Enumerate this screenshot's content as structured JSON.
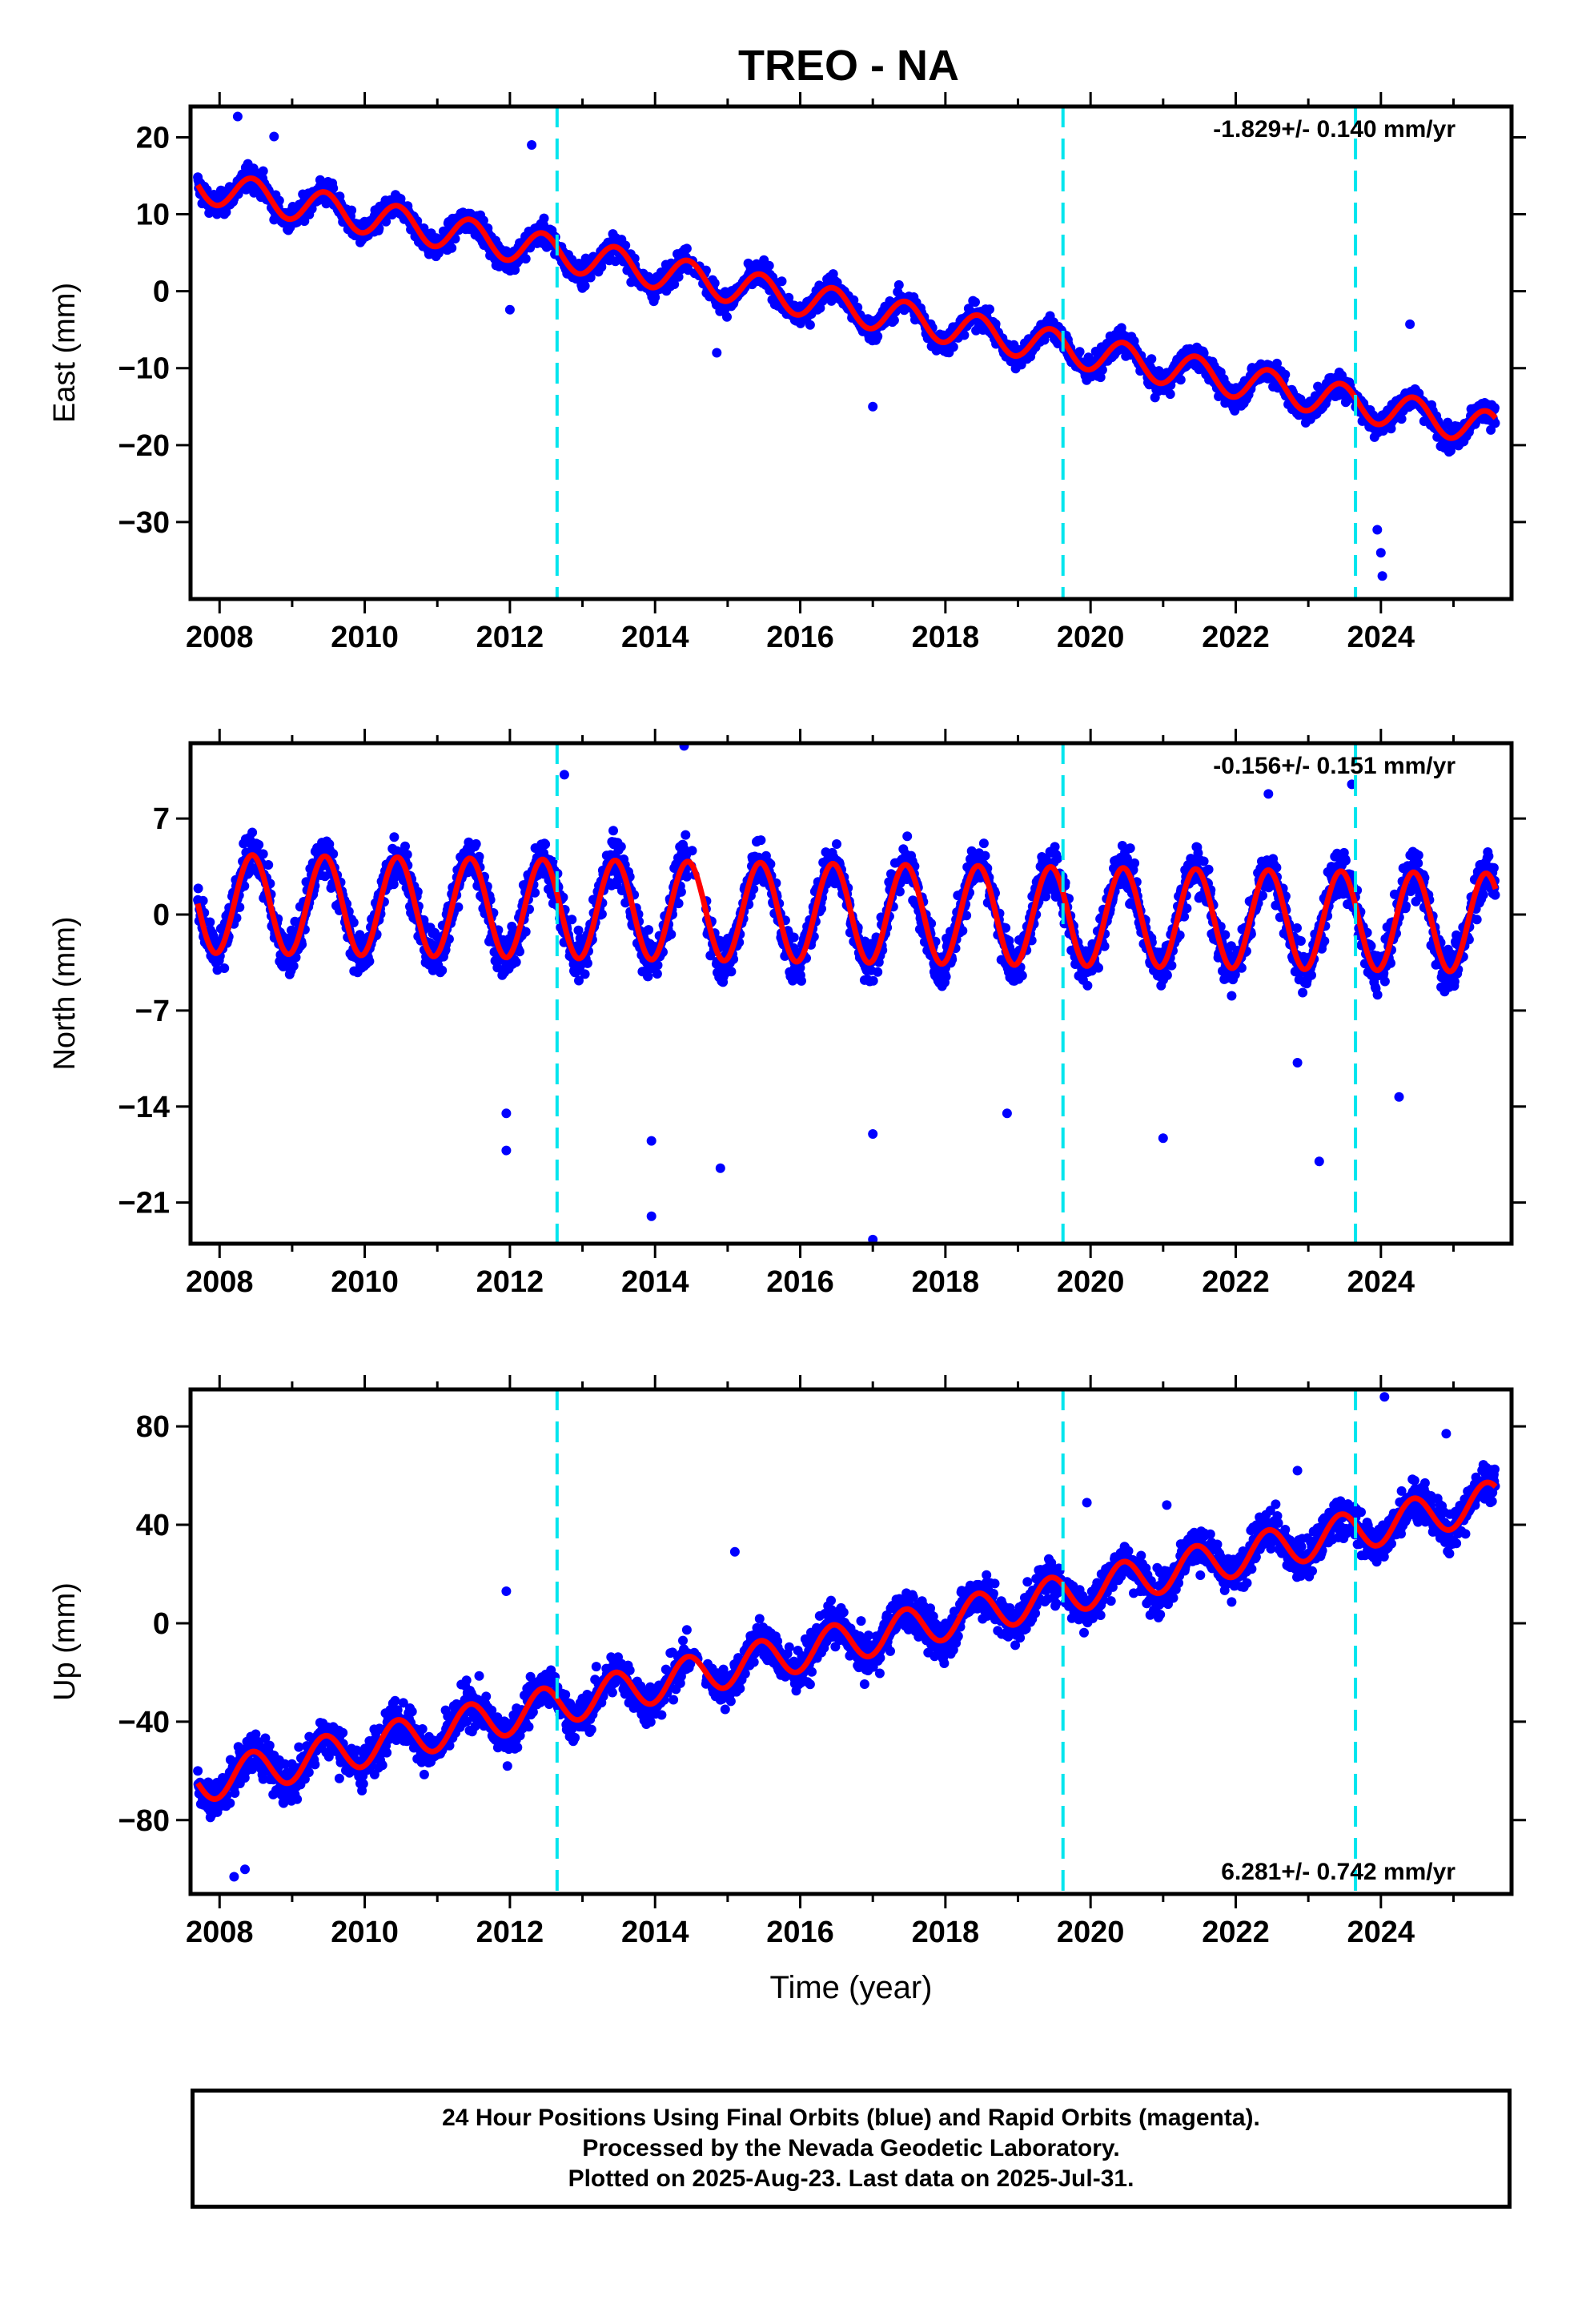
{
  "title": "TREO - NA",
  "colors": {
    "final_orbits": "#0000ff",
    "model": "#ff0000",
    "equipment_change": "#00e5ee",
    "frame": "#000000"
  },
  "chart_data": [
    {
      "type": "scatter",
      "component": "East",
      "ylabel": "East (mm)",
      "xlabel": "",
      "rate_label": "-1.829+/- 0.140 mm/yr",
      "rate_position": "top-right",
      "xlim": [
        2007.6,
        2025.8
      ],
      "ylim": [
        -40,
        24
      ],
      "xticks": [
        2008,
        2010,
        2012,
        2014,
        2016,
        2018,
        2020,
        2022,
        2024
      ],
      "yticks": [
        20,
        10,
        0,
        -10,
        -20,
        -30
      ],
      "ytick_labels": [
        "20",
        "10",
        "0",
        "−10",
        "−20",
        "−30"
      ],
      "grid": false,
      "vertical_lines": [
        2012.65,
        2019.62,
        2023.65
      ],
      "series": [
        {
          "name": "Final Orbits",
          "kind": "points",
          "trend": {
            "x0": 2007.7,
            "x1": 2025.58,
            "y0": 13.8,
            "y1": -18.0
          },
          "annual_amplitude": 2.2,
          "scatter": 1.3
        },
        {
          "name": "Model",
          "kind": "line",
          "trend": {
            "x0": 2007.7,
            "x1": 2025.58,
            "y0": 13.8,
            "y1": -18.0
          },
          "annual_amplitude": 2.2
        }
      ],
      "outliers": [
        [
          2008.25,
          22.7
        ],
        [
          2008.75,
          20.1
        ],
        [
          2012.3,
          19
        ],
        [
          2012.0,
          -2.4
        ],
        [
          2014.85,
          -8
        ],
        [
          2017.0,
          -15
        ],
        [
          2023.95,
          -31
        ],
        [
          2024.0,
          -34
        ],
        [
          2024.02,
          -37
        ],
        [
          2024.4,
          -4.3
        ]
      ]
    },
    {
      "type": "scatter",
      "component": "North",
      "ylabel": "North (mm)",
      "xlabel": "",
      "rate_label": "-0.156+/- 0.151 mm/yr",
      "rate_position": "top-right",
      "xlim": [
        2007.6,
        2025.8
      ],
      "ylim": [
        -24,
        12.5
      ],
      "xticks": [
        2008,
        2010,
        2012,
        2014,
        2016,
        2018,
        2020,
        2022,
        2024
      ],
      "yticks": [
        7,
        0,
        -7,
        -14,
        -21
      ],
      "ytick_labels": [
        "7",
        "0",
        "−7",
        "−14",
        "−21"
      ],
      "grid": false,
      "vertical_lines": [
        2012.65,
        2019.62,
        2023.65
      ],
      "series": [
        {
          "name": "Final Orbits",
          "kind": "points",
          "trend": {
            "x0": 2007.7,
            "x1": 2025.58,
            "y0": 0.8,
            "y1": -0.6
          },
          "annual_amplitude": 3.6,
          "scatter": 1.4
        },
        {
          "name": "Model",
          "kind": "line",
          "trend": {
            "x0": 2007.7,
            "x1": 2025.58,
            "y0": 0.8,
            "y1": -0.6
          },
          "annual_amplitude": 3.6
        }
      ],
      "outliers": [
        [
          2014.4,
          12.3
        ],
        [
          2012.75,
          10.2
        ],
        [
          2011.95,
          -14.5
        ],
        [
          2011.95,
          -17.2
        ],
        [
          2013.95,
          -22
        ],
        [
          2013.95,
          -16.5
        ],
        [
          2014.9,
          -18.5
        ],
        [
          2017.0,
          -23.7
        ],
        [
          2017.0,
          -16
        ],
        [
          2021.0,
          -16.3
        ],
        [
          2023.15,
          -18
        ],
        [
          2022.85,
          -10.8
        ],
        [
          2018.85,
          -14.5
        ],
        [
          2024.25,
          -13.3
        ],
        [
          2023.6,
          9.5
        ],
        [
          2022.45,
          8.8
        ]
      ]
    },
    {
      "type": "scatter",
      "component": "Up",
      "ylabel": "Up (mm)",
      "xlabel": "Time (year)",
      "rate_label": "6.281+/- 0.742 mm/yr",
      "rate_position": "bottom-right",
      "xlim": [
        2007.6,
        2025.8
      ],
      "ylim": [
        -110,
        95
      ],
      "xticks": [
        2008,
        2010,
        2012,
        2014,
        2016,
        2018,
        2020,
        2022,
        2024
      ],
      "yticks": [
        80,
        40,
        0,
        -40,
        -80
      ],
      "ytick_labels": [
        "80",
        "40",
        "0",
        "−40",
        "−80"
      ],
      "grid": false,
      "vertical_lines": [
        2012.65,
        2019.62,
        2023.65
      ],
      "series": [
        {
          "name": "Final Orbits",
          "kind": "points",
          "trend": {
            "x0": 2007.7,
            "x1": 2025.58,
            "y0": -65,
            "y1": 50
          },
          "annual_amplitude": 8,
          "scatter": 7
        },
        {
          "name": "Model",
          "kind": "line",
          "trend": {
            "x0": 2007.7,
            "x1": 2025.58,
            "y0": -65,
            "y1": 50
          },
          "annual_amplitude": 8
        }
      ],
      "outliers": [
        [
          2008.2,
          -103
        ],
        [
          2008.35,
          -100
        ],
        [
          2024.05,
          92
        ],
        [
          2024.9,
          77
        ],
        [
          2022.85,
          62
        ],
        [
          2019.95,
          49
        ],
        [
          2021.05,
          48
        ],
        [
          2011.95,
          13
        ],
        [
          2015.1,
          29
        ]
      ]
    }
  ],
  "caption": {
    "line1": "24 Hour Positions Using Final Orbits (blue) and Rapid Orbits (magenta).",
    "line2": "Processed by the Nevada Geodetic Laboratory.",
    "line3": "Plotted on 2025-Aug-23. Last data on 2025-Jul-31."
  }
}
